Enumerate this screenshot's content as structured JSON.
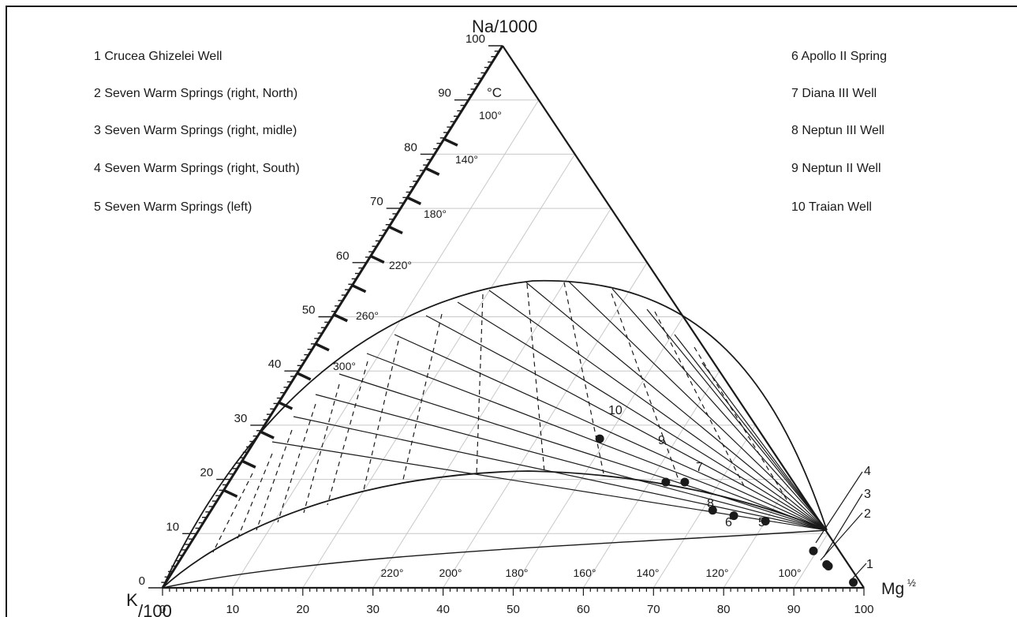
{
  "apex_labels": {
    "top": "Na/1000",
    "left_k": "K",
    "left_sub": "/100",
    "right_mg": "Mg",
    "right_sup": "½"
  },
  "unit_label": "°C",
  "left_axis_ticks": [
    "0",
    "10",
    "20",
    "30",
    "40",
    "50",
    "60",
    "70",
    "80",
    "90",
    "100"
  ],
  "bottom_axis_ticks": [
    "0",
    "10",
    "20",
    "30",
    "40",
    "50",
    "60",
    "70",
    "80",
    "90",
    "100"
  ],
  "kna_temps": [
    "100°",
    "140°",
    "180°",
    "220°",
    "260°",
    "300°"
  ],
  "kmg_temps": [
    "220°",
    "200°",
    "180°",
    "160°",
    "140°",
    "120°",
    "100°"
  ],
  "legend_left": [
    "1 Crucea Ghizelei Well",
    "2 Seven Warm Springs (right, North)",
    "3 Seven Warm Springs (right, midle)",
    "4 Seven Warm Springs (right, South)",
    "5 Seven Warm Springs (left)"
  ],
  "legend_right": [
    "6 Apollo II Spring",
    "7 Diana III Well",
    "8 Neptun III Well",
    "9  Neptun II Well",
    "10 Traian Well"
  ],
  "samples": [
    {
      "id": "1",
      "na": 1,
      "mg": 98
    },
    {
      "id": "2",
      "na": 4,
      "mg": 93
    },
    {
      "id": "3",
      "na": 4.3,
      "mg": 92.6
    },
    {
      "id": "4",
      "na": 6.8,
      "mg": 89.5
    },
    {
      "id": "5",
      "na": 12.3,
      "mg": 80
    },
    {
      "id": "6",
      "na": 13.3,
      "mg": 75
    },
    {
      "id": "7",
      "na": 19.5,
      "mg": 65
    },
    {
      "id": "8",
      "na": 14.3,
      "mg": 71.5
    },
    {
      "id": "9",
      "na": 19.5,
      "mg": 62.3
    },
    {
      "id": "10",
      "na": 27.5,
      "mg": 49
    }
  ]
}
